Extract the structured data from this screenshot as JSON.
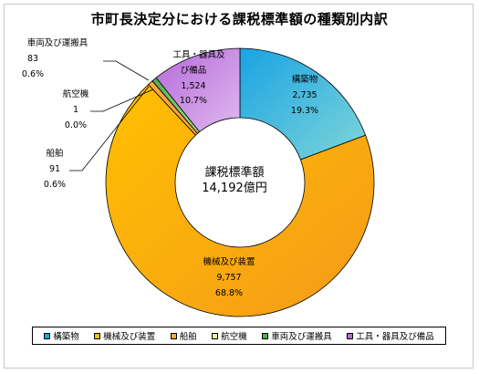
{
  "chart_data": {
    "type": "pie",
    "title": "市町長決定分における課税標準額の種類別内訳",
    "center_label": [
      "課税標準額",
      "14,192億円"
    ],
    "slices": [
      {
        "name": "構築物",
        "value_text": "2,735",
        "pct_text": "19.3%",
        "value": 2735,
        "pct": 19.3,
        "color": "#1aa3e3",
        "color2": "#7fd6d8"
      },
      {
        "name": "機械及び装置",
        "value_text": "9,757",
        "pct_text": "68.8%",
        "value": 9757,
        "pct": 68.8,
        "color": "#ffc000",
        "color2": "#f59a1a"
      },
      {
        "name": "船舶",
        "value_text": "91",
        "pct_text": "0.6%",
        "value": 91,
        "pct": 0.6,
        "color": "#ffa640",
        "color2": "#ffa640"
      },
      {
        "name": "航空機",
        "value_text": "1",
        "pct_text": "0.0%",
        "value": 1,
        "pct": 0.0,
        "color": "#f2f2a0",
        "color2": "#f2f2a0"
      },
      {
        "name": "車両及び運搬具",
        "value_text": "83",
        "pct_text": "0.6%",
        "value": 83,
        "pct": 0.6,
        "color": "#4caf50",
        "color2": "#a6e08a"
      },
      {
        "name": "工具・器具及び備品",
        "value_text": "1,524",
        "pct_text": "10.7%",
        "value": 1524,
        "pct": 10.7,
        "color": "#b56ad8",
        "color2": "#e0b8f0"
      }
    ],
    "legend": [
      "構築物",
      "機械及び装置",
      "船舶",
      "航空機",
      "車両及び運搬具",
      "工具・器具及び備品"
    ],
    "legend_position": "bottom"
  },
  "labels": {
    "kouchiku": [
      "構築物",
      "2,735",
      "19.3%"
    ],
    "kikai": [
      "機械及び装置",
      "9,757",
      "68.8%"
    ],
    "senpaku": [
      "船舶",
      "91",
      "0.6%"
    ],
    "koukuuki": [
      "航空機",
      "1",
      "0.0%"
    ],
    "sharyou": [
      "車両及び運搬具",
      "83",
      "0.6%"
    ],
    "kougu": [
      "工具・器具及",
      "び備品",
      "1,524",
      "10.7%"
    ]
  }
}
